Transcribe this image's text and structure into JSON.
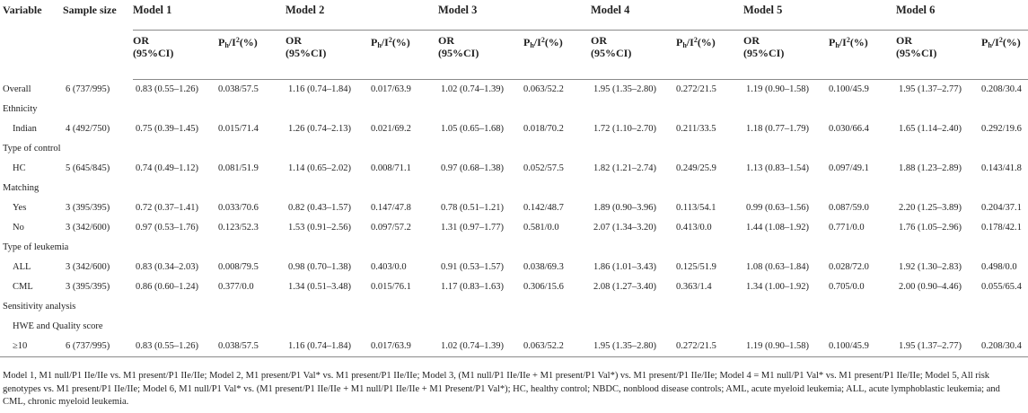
{
  "header": {
    "variable": "Variable",
    "sample_size": "Sample size",
    "models": [
      "Model 1",
      "Model 2",
      "Model 3",
      "Model 4",
      "Model 5",
      "Model 6"
    ],
    "or_label_line1": "OR",
    "or_label_line2": "(95%CI)",
    "ph_label_base": "P",
    "ph_label_sub": "h",
    "ph_label_mid": "/I",
    "ph_label_sup": "2",
    "ph_label_end": "(%)"
  },
  "rows": [
    {
      "label": "Overall",
      "type": "data",
      "sample": "6 (737/995)",
      "values": [
        "0.83 (0.55–1.26)",
        "0.038/57.5",
        "1.16 (0.74–1.84)",
        "0.017/63.9",
        "1.02 (0.74–1.39)",
        "0.063/52.2",
        "1.95 (1.35–2.80)",
        "0.272/21.5",
        "1.19 (0.90–1.58)",
        "0.100/45.9",
        "1.95 (1.37–2.77)",
        "0.208/30.4"
      ]
    },
    {
      "label": "Ethnicity",
      "type": "group"
    },
    {
      "label": "Indian",
      "type": "data",
      "indent": true,
      "sample": "4 (492/750)",
      "values": [
        "0.75 (0.39–1.45)",
        "0.015/71.4",
        "1.26 (0.74–2.13)",
        "0.021/69.2",
        "1.05 (0.65–1.68)",
        "0.018/70.2",
        "1.72 (1.10–2.70)",
        "0.211/33.5",
        "1.18 (0.77–1.79)",
        "0.030/66.4",
        "1.65 (1.14–2.40)",
        "0.292/19.6"
      ]
    },
    {
      "label": "Type of control",
      "type": "group"
    },
    {
      "label": "HC",
      "type": "data",
      "indent": true,
      "sample": "5 (645/845)",
      "values": [
        "0.74 (0.49–1.12)",
        "0.081/51.9",
        "1.14 (0.65–2.02)",
        "0.008/71.1",
        "0.97 (0.68–1.38)",
        "0.052/57.5",
        "1.82 (1.21–2.74)",
        "0.249/25.9",
        "1.13 (0.83–1.54)",
        "0.097/49.1",
        "1.88 (1.23–2.89)",
        "0.143/41.8"
      ]
    },
    {
      "label": "Matching",
      "type": "group"
    },
    {
      "label": "Yes",
      "type": "data",
      "indent": true,
      "sample": "3 (395/395)",
      "values": [
        "0.72 (0.37–1.41)",
        "0.033/70.6",
        "0.82 (0.43–1.57)",
        "0.147/47.8",
        "0.78 (0.51–1.21)",
        "0.142/48.7",
        "1.89 (0.90–3.96)",
        "0.113/54.1",
        "0.99 (0.63–1.56)",
        "0.087/59.0",
        "2.20 (1.25–3.89)",
        "0.204/37.1"
      ]
    },
    {
      "label": "No",
      "type": "data",
      "indent": true,
      "sample": "3 (342/600)",
      "values": [
        "0.97 (0.53–1.76)",
        "0.123/52.3",
        "1.53 (0.91–2.56)",
        "0.097/57.2",
        "1.31 (0.97–1.77)",
        "0.581/0.0",
        "2.07 (1.34–3.20)",
        "0.413/0.0",
        "1.44 (1.08–1.92)",
        "0.771/0.0",
        "1.76 (1.05–2.96)",
        "0.178/42.1"
      ]
    },
    {
      "label": "Type of leukemia",
      "type": "group"
    },
    {
      "label": "ALL",
      "type": "data",
      "indent": true,
      "sample": "3 (342/600)",
      "values": [
        "0.83 (0.34–2.03)",
        "0.008/79.5",
        "0.98 (0.70–1.38)",
        "0.403/0.0",
        "0.91 (0.53–1.57)",
        "0.038/69.3",
        "1.86 (1.01–3.43)",
        "0.125/51.9",
        "1.08 (0.63–1.84)",
        "0.028/72.0",
        "1.92 (1.30–2.83)",
        "0.498/0.0"
      ]
    },
    {
      "label": "CML",
      "type": "data",
      "indent": true,
      "sample": "3 (395/395)",
      "values": [
        "0.86 (0.60–1.24)",
        "0.377/0.0",
        "1.34 (0.51–3.48)",
        "0.015/76.1",
        "1.17 (0.83–1.63)",
        "0.306/15.6",
        "2.08 (1.27–3.40)",
        "0.363/1.4",
        "1.34 (1.00–1.92)",
        "0.705/0.0",
        "2.00 (0.90–4.46)",
        "0.055/65.4"
      ]
    },
    {
      "label": "Sensitivity analysis",
      "type": "group"
    },
    {
      "label": "HWE and Quality score",
      "type": "group",
      "indent": true
    },
    {
      "label": "≥10",
      "type": "data",
      "indent": true,
      "last": true,
      "sample": "6 (737/995)",
      "values": [
        "0.83 (0.55–1.26)",
        "0.038/57.5",
        "1.16 (0.74–1.84)",
        "0.017/63.9",
        "1.02 (0.74–1.39)",
        "0.063/52.2",
        "1.95 (1.35–2.80)",
        "0.272/21.5",
        "1.19 (0.90–1.58)",
        "0.100/45.9",
        "1.95 (1.37–2.77)",
        "0.208/30.4"
      ]
    }
  ],
  "footnote": "Model 1, M1 null/P1 IIe/IIe vs. M1 present/P1 IIe/IIe; Model 2, M1 present/P1 Val* vs. M1 present/P1 IIe/IIe; Model 3, (M1 null/P1 IIe/IIe + M1 present/P1 Val*) vs. M1 present/P1 IIe/IIe; Model 4 = M1 null/P1 Val* vs. M1 present/P1 IIe/IIe; Model 5, All risk genotypes vs. M1 present/P1 IIe/IIe; Model 6, M1 null/P1 Val* vs. (M1 present/P1 IIe/IIe + M1 null/P1 IIe/IIe + M1 Present/P1 Val*); HC, healthy control; NBDC, nonblood disease controls; AML, acute myeloid leukemia; ALL, acute lymphoblastic leukemia; and CML, chronic myeloid leukemia."
}
